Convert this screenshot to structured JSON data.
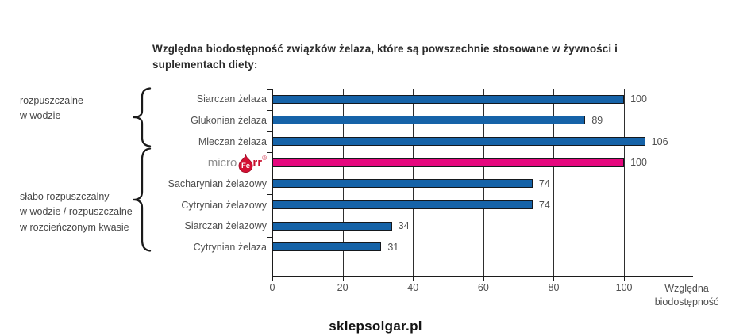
{
  "title": "Względna biodostępność związków żelaza, które są powszechnie stosowane w żywności i suplementach diety:",
  "annotations": [
    {
      "lines": [
        "rozpuszczalne",
        "w wodzie"
      ]
    },
    {
      "lines": [
        "słabo rozpuszczalny",
        "w wodzie / rozpuszczalne",
        "w rozcieńczonym kwasie"
      ]
    }
  ],
  "logo": {
    "prefix": "micro",
    "drop_text": "Fe",
    "suffix": "rr",
    "reg": "®"
  },
  "footer": {
    "logo_text": "sklepsolgar.pl"
  },
  "chart_data": {
    "type": "bar",
    "orientation": "horizontal",
    "title": "Względna biodostępność związków żelaza, które są powszechnie stosowane w żywności i suplementach diety:",
    "categories": [
      "Siarczan żelaza",
      "Glukonian żelaza",
      "Mleczan żelaza",
      "microFerr®",
      "Sacharynian żelazowy",
      "Cytrynian żelazowy",
      "Siarczan żelazowy",
      "Cytrynian żelaza"
    ],
    "values": [
      100,
      89,
      106,
      100,
      74,
      74,
      34,
      31
    ],
    "highlight_index": 3,
    "bar_color_default": "#1663A8",
    "bar_color_highlight": "#E5077E",
    "x_ticks": [
      0,
      20,
      40,
      60,
      80,
      100
    ],
    "xlim": [
      0,
      120
    ],
    "xlabel_lines": [
      "Względna",
      "biodostępność"
    ],
    "grid": "vertical",
    "groups": [
      {
        "label": "rozpuszczalne w wodzie",
        "category_span": [
          0,
          2
        ]
      },
      {
        "label": "słabo rozpuszczalny w wodzie / rozpuszczalne w rozcieńczonym kwasie",
        "category_span": [
          3,
          7
        ]
      }
    ]
  }
}
